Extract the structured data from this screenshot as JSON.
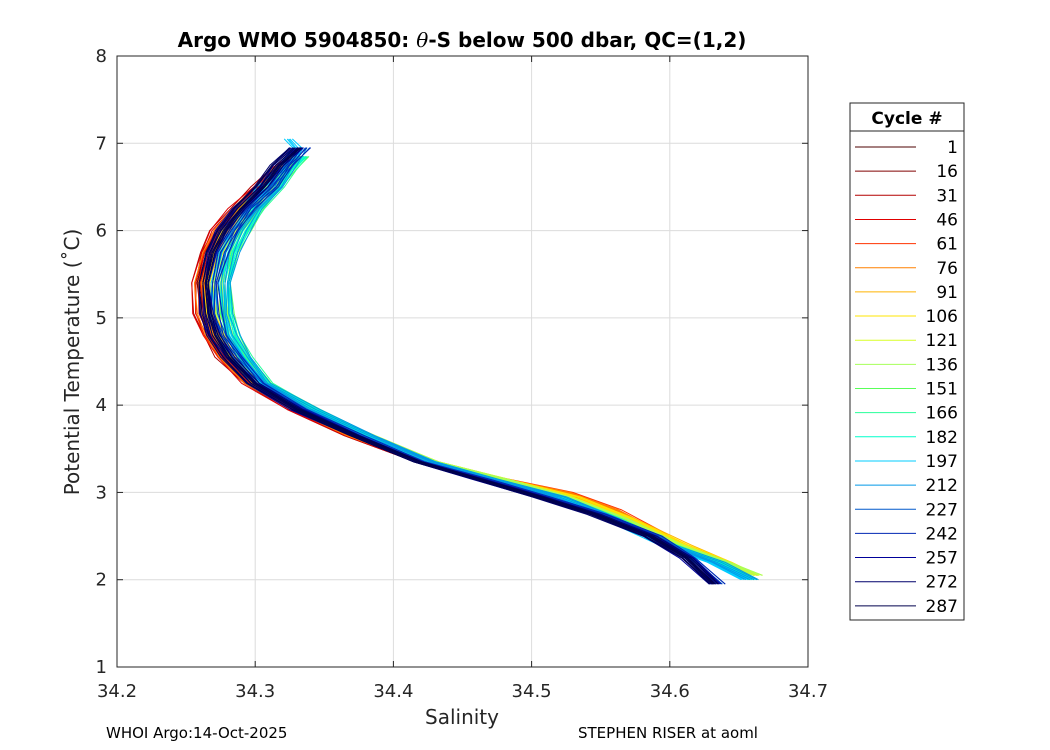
{
  "chart_data": {
    "type": "line",
    "title_prefix": "Argo WMO 5904850: ",
    "title_symbol": "θ",
    "title_suffix": "-S below 500 dbar,  QC=(1,2)",
    "xlabel": "Salinity",
    "ylabel": "Potential Temperature (˚C)",
    "xlim": [
      34.2,
      34.7
    ],
    "ylim": [
      1,
      8
    ],
    "xticks": [
      "34.2",
      "34.3",
      "34.4",
      "34.5",
      "34.6",
      "34.7"
    ],
    "yticks": [
      "1",
      "2",
      "3",
      "4",
      "5",
      "6",
      "7",
      "8"
    ],
    "grid": true,
    "legend_title": "Cycle #",
    "legend_position": "right",
    "series": [
      {
        "name": "1",
        "color": "#4d0000",
        "x": [
          34.33,
          34.318,
          34.308,
          34.29,
          34.276,
          34.268,
          34.262,
          34.264,
          34.27,
          34.28,
          34.298,
          34.33,
          34.37,
          34.42,
          34.46,
          34.52,
          34.555,
          34.585,
          34.6
        ],
        "y": [
          6.85,
          6.7,
          6.5,
          6.25,
          6.0,
          5.75,
          5.4,
          5.05,
          4.8,
          4.55,
          4.25,
          3.95,
          3.65,
          3.35,
          3.2,
          3.0,
          2.8,
          2.55,
          2.4
        ]
      },
      {
        "name": "16",
        "color": "#800000",
        "x": [
          34.33,
          34.318,
          34.308,
          34.29,
          34.276,
          34.268,
          34.262,
          34.264,
          34.27,
          34.28,
          34.298,
          34.33,
          34.37,
          34.42,
          34.46,
          34.52,
          34.555,
          34.585,
          34.6
        ],
        "y": [
          6.85,
          6.7,
          6.5,
          6.25,
          6.0,
          5.75,
          5.4,
          5.05,
          4.8,
          4.55,
          4.25,
          3.95,
          3.65,
          3.35,
          3.2,
          3.0,
          2.8,
          2.55,
          2.4
        ]
      },
      {
        "name": "31",
        "color": "#b30000",
        "x": [
          34.33,
          34.314,
          34.302,
          34.285,
          34.272,
          34.264,
          34.258,
          34.26,
          34.266,
          34.276,
          34.295,
          34.328,
          34.368,
          34.42,
          34.462,
          34.522,
          34.556,
          34.586,
          34.6
        ],
        "y": [
          6.85,
          6.7,
          6.5,
          6.25,
          6.0,
          5.75,
          5.4,
          5.05,
          4.8,
          4.55,
          4.25,
          3.95,
          3.65,
          3.35,
          3.2,
          3.0,
          2.8,
          2.55,
          2.4
        ]
      },
      {
        "name": "46",
        "color": "#e00000",
        "x": [
          34.33,
          34.314,
          34.302,
          34.285,
          34.272,
          34.264,
          34.258,
          34.26,
          34.266,
          34.276,
          34.295,
          34.328,
          34.368,
          34.42,
          34.462,
          34.522,
          34.556,
          34.586,
          34.6
        ],
        "y": [
          6.85,
          6.7,
          6.5,
          6.25,
          6.0,
          5.75,
          5.4,
          5.05,
          4.8,
          4.55,
          4.25,
          3.95,
          3.65,
          3.35,
          3.2,
          3.0,
          2.8,
          2.55,
          2.4
        ]
      },
      {
        "name": "61",
        "color": "#ff3300",
        "x": [
          34.33,
          34.316,
          34.304,
          34.287,
          34.274,
          34.266,
          34.26,
          34.262,
          34.268,
          34.278,
          34.296,
          34.33,
          34.37,
          34.422,
          34.465,
          34.525,
          34.56,
          34.59,
          34.605
        ],
        "y": [
          6.85,
          6.7,
          6.5,
          6.25,
          6.0,
          5.75,
          5.4,
          5.05,
          4.8,
          4.55,
          4.25,
          3.95,
          3.65,
          3.35,
          3.2,
          3.0,
          2.8,
          2.55,
          2.4
        ]
      },
      {
        "name": "76",
        "color": "#ff8000",
        "x": [
          34.33,
          34.316,
          34.304,
          34.287,
          34.274,
          34.266,
          34.26,
          34.262,
          34.268,
          34.278,
          34.296,
          34.33,
          34.37,
          34.422,
          34.465,
          34.525,
          34.56,
          34.59,
          34.605
        ],
        "y": [
          6.85,
          6.7,
          6.5,
          6.25,
          6.0,
          5.75,
          5.4,
          5.05,
          4.8,
          4.55,
          4.25,
          3.95,
          3.65,
          3.35,
          3.2,
          3.0,
          2.8,
          2.55,
          2.4
        ]
      },
      {
        "name": "91",
        "color": "#ffb300",
        "x": [
          34.33,
          34.318,
          34.308,
          34.292,
          34.28,
          34.272,
          34.266,
          34.268,
          34.274,
          34.284,
          34.302,
          34.336,
          34.38,
          34.43,
          34.48,
          34.53,
          34.57,
          34.61,
          34.64,
          34.66
        ],
        "y": [
          6.85,
          6.7,
          6.5,
          6.25,
          6.0,
          5.75,
          5.4,
          5.05,
          4.8,
          4.55,
          4.25,
          3.95,
          3.65,
          3.35,
          3.15,
          2.95,
          2.7,
          2.4,
          2.2,
          2.05
        ]
      },
      {
        "name": "106",
        "color": "#ffe600",
        "x": [
          34.33,
          34.318,
          34.308,
          34.292,
          34.28,
          34.272,
          34.266,
          34.268,
          34.274,
          34.284,
          34.302,
          34.336,
          34.38,
          34.43,
          34.48,
          34.53,
          34.57,
          34.61,
          34.64,
          34.66
        ],
        "y": [
          6.85,
          6.7,
          6.5,
          6.25,
          6.0,
          5.75,
          5.4,
          5.05,
          4.8,
          4.55,
          4.25,
          3.95,
          3.65,
          3.35,
          3.15,
          2.95,
          2.7,
          2.4,
          2.2,
          2.05
        ]
      },
      {
        "name": "121",
        "color": "#d9ff26",
        "x": [
          34.332,
          34.322,
          34.313,
          34.298,
          34.287,
          34.279,
          34.274,
          34.275,
          34.28,
          34.29,
          34.306,
          34.34,
          34.382,
          34.43,
          34.478,
          34.525,
          34.565,
          34.605,
          34.64,
          34.662
        ],
        "y": [
          6.85,
          6.7,
          6.5,
          6.25,
          6.0,
          5.75,
          5.4,
          5.05,
          4.8,
          4.55,
          4.25,
          3.95,
          3.65,
          3.35,
          3.15,
          2.95,
          2.7,
          2.4,
          2.2,
          2.05
        ]
      },
      {
        "name": "136",
        "color": "#a6ff59",
        "x": [
          34.332,
          34.322,
          34.313,
          34.298,
          34.287,
          34.279,
          34.274,
          34.275,
          34.28,
          34.29,
          34.306,
          34.34,
          34.382,
          34.43,
          34.478,
          34.525,
          34.565,
          34.605,
          34.64,
          34.662
        ],
        "y": [
          6.85,
          6.7,
          6.5,
          6.25,
          6.0,
          5.75,
          5.4,
          5.05,
          4.8,
          4.55,
          4.25,
          3.95,
          3.65,
          3.35,
          3.15,
          2.95,
          2.7,
          2.4,
          2.2,
          2.05
        ]
      },
      {
        "name": "151",
        "color": "#59ff59",
        "x": [
          34.334,
          34.325,
          34.316,
          34.302,
          34.292,
          34.284,
          34.279,
          34.28,
          34.284,
          34.293,
          34.308,
          34.342,
          34.382,
          34.428,
          34.472,
          34.52,
          34.56,
          34.6,
          34.635,
          34.66
        ],
        "y": [
          6.85,
          6.7,
          6.5,
          6.25,
          6.0,
          5.75,
          5.4,
          5.05,
          4.8,
          4.55,
          4.25,
          3.95,
          3.65,
          3.35,
          3.15,
          2.95,
          2.7,
          2.4,
          2.2,
          2.0
        ]
      },
      {
        "name": "166",
        "color": "#26ff99",
        "x": [
          34.334,
          34.325,
          34.316,
          34.302,
          34.292,
          34.284,
          34.279,
          34.28,
          34.284,
          34.293,
          34.308,
          34.342,
          34.382,
          34.428,
          34.472,
          34.52,
          34.56,
          34.6,
          34.635,
          34.66
        ],
        "y": [
          6.85,
          6.7,
          6.5,
          6.25,
          6.0,
          5.75,
          5.4,
          5.05,
          4.8,
          4.55,
          4.25,
          3.95,
          3.65,
          3.35,
          3.15,
          2.95,
          2.7,
          2.4,
          2.2,
          2.0
        ]
      },
      {
        "name": "182",
        "color": "#00ffcc",
        "x": [
          34.334,
          34.325,
          34.316,
          34.302,
          34.292,
          34.284,
          34.279,
          34.28,
          34.284,
          34.293,
          34.308,
          34.342,
          34.382,
          34.428,
          34.472,
          34.52,
          34.56,
          34.6,
          34.635,
          34.66
        ],
        "y": [
          6.85,
          6.7,
          6.5,
          6.25,
          6.0,
          5.75,
          5.4,
          5.05,
          4.8,
          4.55,
          4.25,
          3.95,
          3.65,
          3.35,
          3.15,
          2.95,
          2.7,
          2.4,
          2.2,
          2.0
        ]
      },
      {
        "name": "197",
        "color": "#00ccff",
        "x": [
          34.324,
          34.33,
          34.326,
          34.32,
          34.314,
          34.306,
          34.294,
          34.284,
          34.277,
          34.272,
          34.273,
          34.278,
          34.288,
          34.305,
          34.338,
          34.378,
          34.425,
          34.47,
          34.515,
          34.555,
          34.595,
          34.63,
          34.655
        ],
        "y": [
          7.05,
          6.95,
          6.85,
          6.7,
          6.6,
          6.5,
          6.25,
          6.0,
          5.75,
          5.4,
          5.05,
          4.8,
          4.55,
          4.25,
          3.95,
          3.65,
          3.35,
          3.15,
          2.95,
          2.7,
          2.4,
          2.2,
          2.0
        ]
      },
      {
        "name": "212",
        "color": "#0099e6",
        "x": [
          34.334,
          34.325,
          34.316,
          34.302,
          34.292,
          34.284,
          34.279,
          34.28,
          34.284,
          34.293,
          34.308,
          34.342,
          34.382,
          34.428,
          34.472,
          34.52,
          34.56,
          34.6,
          34.635,
          34.66
        ],
        "y": [
          6.95,
          6.75,
          6.5,
          6.25,
          6.0,
          5.75,
          5.4,
          5.05,
          4.8,
          4.55,
          4.25,
          3.95,
          3.65,
          3.35,
          3.15,
          2.95,
          2.7,
          2.4,
          2.2,
          2.0
        ]
      },
      {
        "name": "227",
        "color": "#0059cc",
        "x": [
          34.335,
          34.324,
          34.312,
          34.296,
          34.284,
          34.276,
          34.27,
          34.271,
          34.276,
          34.286,
          34.302,
          34.334,
          34.374,
          34.42,
          34.465,
          34.51,
          34.55,
          34.59,
          34.615,
          34.635
        ],
        "y": [
          6.95,
          6.75,
          6.5,
          6.25,
          6.0,
          5.75,
          5.4,
          5.05,
          4.8,
          4.55,
          4.25,
          3.95,
          3.65,
          3.35,
          3.15,
          2.95,
          2.75,
          2.5,
          2.25,
          1.95
        ]
      },
      {
        "name": "242",
        "color": "#0026b3",
        "x": [
          34.335,
          34.324,
          34.312,
          34.296,
          34.284,
          34.276,
          34.27,
          34.271,
          34.276,
          34.286,
          34.302,
          34.334,
          34.374,
          34.42,
          34.465,
          34.51,
          34.55,
          34.59,
          34.615,
          34.635
        ],
        "y": [
          6.95,
          6.75,
          6.5,
          6.25,
          6.0,
          5.75,
          5.4,
          5.05,
          4.8,
          4.55,
          4.25,
          3.95,
          3.65,
          3.35,
          3.15,
          2.95,
          2.75,
          2.5,
          2.25,
          1.95
        ]
      },
      {
        "name": "257",
        "color": "#000099",
        "x": [
          34.33,
          34.316,
          34.304,
          34.288,
          34.276,
          34.268,
          34.263,
          34.265,
          34.27,
          34.28,
          34.298,
          34.33,
          34.372,
          34.418,
          34.462,
          34.505,
          34.545,
          34.585,
          34.612,
          34.632
        ],
        "y": [
          6.95,
          6.75,
          6.5,
          6.25,
          6.0,
          5.75,
          5.4,
          5.05,
          4.8,
          4.55,
          4.25,
          3.95,
          3.65,
          3.35,
          3.15,
          2.95,
          2.75,
          2.5,
          2.25,
          1.95
        ]
      },
      {
        "name": "272",
        "color": "#00006b",
        "x": [
          34.33,
          34.316,
          34.304,
          34.288,
          34.276,
          34.268,
          34.263,
          34.265,
          34.27,
          34.28,
          34.298,
          34.33,
          34.372,
          34.418,
          34.462,
          34.505,
          34.545,
          34.585,
          34.612,
          34.632
        ],
        "y": [
          6.95,
          6.75,
          6.5,
          6.25,
          6.0,
          5.75,
          5.4,
          5.05,
          4.8,
          4.55,
          4.25,
          3.95,
          3.65,
          3.35,
          3.15,
          2.95,
          2.75,
          2.5,
          2.25,
          1.95
        ]
      },
      {
        "name": "287",
        "color": "#00004d",
        "x": [
          34.33,
          34.316,
          34.304,
          34.288,
          34.276,
          34.268,
          34.263,
          34.265,
          34.27,
          34.28,
          34.298,
          34.33,
          34.372,
          34.418,
          34.462,
          34.505,
          34.545,
          34.585,
          34.612,
          34.632
        ],
        "y": [
          6.95,
          6.75,
          6.5,
          6.25,
          6.0,
          5.75,
          5.4,
          5.05,
          4.8,
          4.55,
          4.25,
          3.95,
          3.65,
          3.35,
          3.15,
          2.95,
          2.75,
          2.5,
          2.25,
          1.95
        ]
      }
    ]
  },
  "footer": {
    "left": "WHOI Argo:14-Oct-2025",
    "right": "STEPHEN RISER at aoml"
  }
}
